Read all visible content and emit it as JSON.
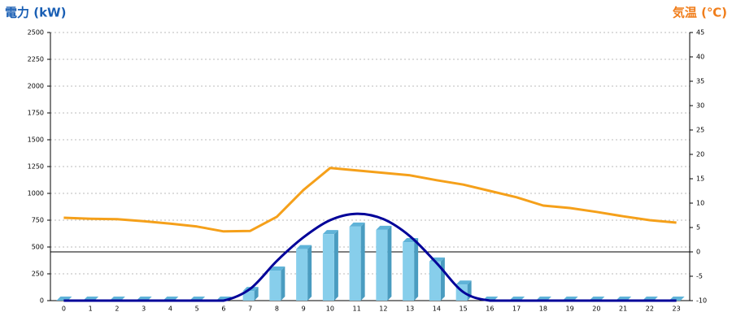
{
  "chart_data": {
    "type": "bar",
    "title": "電力 (kW)",
    "y2_title": "気温 (℃)",
    "categories": [
      "0",
      "1",
      "2",
      "3",
      "4",
      "5",
      "6",
      "7",
      "8",
      "9",
      "10",
      "11",
      "12",
      "13",
      "14",
      "15",
      "16",
      "17",
      "18",
      "19",
      "20",
      "21",
      "22",
      "23"
    ],
    "series": [
      {
        "type": "bar",
        "color": "#87ceeb",
        "values": [
          0,
          0,
          0,
          0,
          0,
          0,
          0,
          90,
          280,
          480,
          620,
          690,
          660,
          545,
          365,
          150,
          0,
          0,
          0,
          0,
          0,
          0,
          0,
          0
        ]
      },
      {
        "type": "line",
        "smooth": true,
        "color": "#000099",
        "values": [
          0,
          0,
          0,
          0,
          0,
          0,
          0,
          110,
          370,
          590,
          750,
          810,
          760,
          600,
          350,
          80,
          0,
          0,
          0,
          0,
          0,
          0,
          0,
          0
        ]
      },
      {
        "type": "line",
        "axis": "y2",
        "color": "#f5a01a",
        "values": [
          7,
          6.8,
          6.7,
          6.3,
          5.8,
          5.2,
          4.2,
          4.3,
          7.2,
          12.7,
          17.2,
          16.7,
          16.2,
          15.7,
          14.7,
          13.8,
          12.5,
          11.2,
          9.5,
          9,
          8.2,
          7.3,
          6.5,
          6
        ]
      }
    ],
    "ylim": [
      0,
      2500
    ],
    "yticks": [
      0,
      250,
      500,
      750,
      1000,
      1250,
      1500,
      1750,
      2000,
      2250,
      2500
    ],
    "y2lim": [
      -10,
      45
    ],
    "y2ticks": [
      -10,
      -5,
      0,
      5,
      10,
      15,
      20,
      25,
      30,
      35,
      40,
      45
    ],
    "grid": true,
    "y2_zero_line": true
  }
}
